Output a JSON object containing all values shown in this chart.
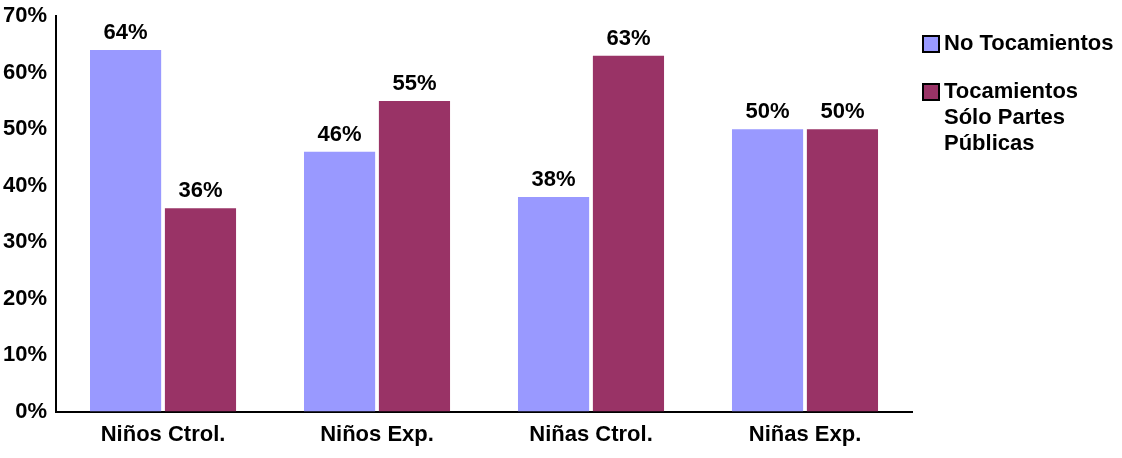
{
  "chart_data": {
    "type": "bar",
    "categories": [
      "Niños Ctrol.",
      "Niños Exp.",
      "Niñas Ctrol.",
      "Niñas Exp."
    ],
    "series": [
      {
        "name": "No Tocamientos",
        "color": "#9999ff",
        "values": [
          64,
          46,
          38,
          50
        ],
        "value_labels": [
          "64%",
          "46%",
          "38%",
          "50%"
        ]
      },
      {
        "name": "Tocamientos Sólo Partes Públicas",
        "color": "#993366",
        "values": [
          36,
          55,
          63,
          50
        ],
        "value_labels": [
          "36%",
          "55%",
          "63%",
          "50%"
        ]
      }
    ],
    "ylim": [
      0,
      70
    ],
    "yticks": [
      {
        "value": 0,
        "label": "0%"
      },
      {
        "value": 10,
        "label": "10%"
      },
      {
        "value": 20,
        "label": "20%"
      },
      {
        "value": 30,
        "label": "30%"
      },
      {
        "value": 40,
        "label": "40%"
      },
      {
        "value": 50,
        "label": "50%"
      },
      {
        "value": 60,
        "label": "60%"
      },
      {
        "value": 70,
        "label": "70%"
      }
    ],
    "legend": "right",
    "grid": false
  }
}
